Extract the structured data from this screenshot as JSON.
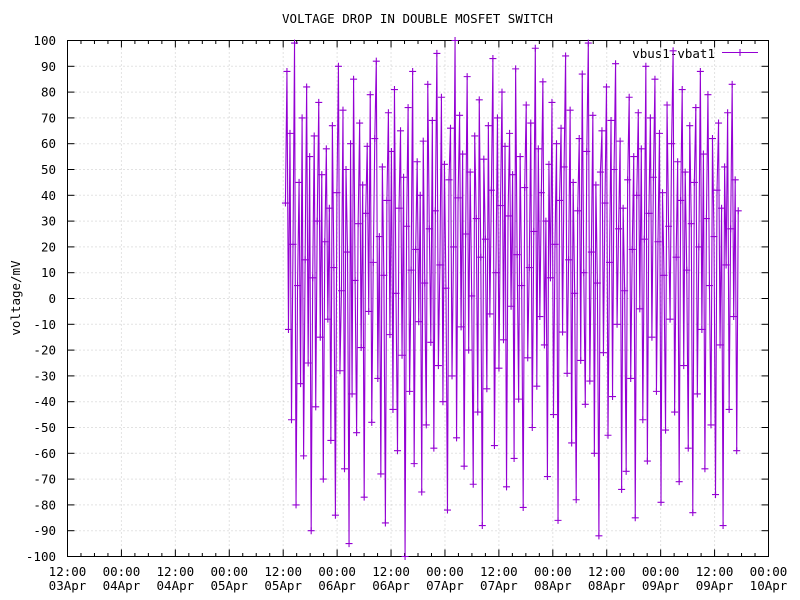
{
  "chart_data": {
    "type": "line",
    "title": "VOLTAGE DROP IN DOUBLE MOSFET SWITCH",
    "xlabel": "",
    "ylabel": "voltage/mV",
    "ylim": [
      -100,
      100
    ],
    "y_tick_step": 10,
    "x_total_hours": 156,
    "x_major_step_hours": 12,
    "x_minor_step_hours": 3,
    "grid": true,
    "legend": {
      "label": "vbus1-vbat1",
      "position": "top-right"
    },
    "xticks": [
      {
        "time": "12:00",
        "date": "03Apr"
      },
      {
        "time": "00:00",
        "date": "04Apr"
      },
      {
        "time": "12:00",
        "date": "04Apr"
      },
      {
        "time": "00:00",
        "date": "05Apr"
      },
      {
        "time": "12:00",
        "date": "05Apr"
      },
      {
        "time": "00:00",
        "date": "06Apr"
      },
      {
        "time": "12:00",
        "date": "06Apr"
      },
      {
        "time": "00:00",
        "date": "07Apr"
      },
      {
        "time": "12:00",
        "date": "07Apr"
      },
      {
        "time": "00:00",
        "date": "08Apr"
      },
      {
        "time": "12:00",
        "date": "08Apr"
      },
      {
        "time": "00:00",
        "date": "09Apr"
      },
      {
        "time": "12:00",
        "date": "09Apr"
      },
      {
        "time": "00:00",
        "date": "10Apr"
      }
    ],
    "colors": {
      "series": "#9400d3",
      "grid": "#c6c6c6",
      "axis": "#000000",
      "text": "#000000",
      "background": "#ffffff"
    },
    "series": [
      {
        "name": "vbus1-vbat1",
        "color": "#9400d3",
        "marker": "plus",
        "start_hours": 48.5,
        "step_hours": 0.337,
        "unit": "mV",
        "values": [
          37,
          88,
          -12,
          64,
          -47,
          21,
          99,
          -80,
          5,
          45,
          -33,
          70,
          -61,
          15,
          82,
          -25,
          55,
          -90,
          8,
          63,
          -42,
          30,
          76,
          -15,
          48,
          -70,
          22,
          58,
          -8,
          35,
          -55,
          67,
          12,
          -84,
          41,
          90,
          -28,
          3,
          73,
          -66,
          50,
          18,
          -95,
          60,
          -37,
          85,
          7,
          -52,
          29,
          68,
          -19,
          44,
          -77,
          33,
          59,
          -5,
          79,
          -48,
          14,
          62,
          92,
          -31,
          24,
          -68,
          51,
          9,
          -87,
          38,
          72,
          -14,
          57,
          -43,
          81,
          2,
          -59,
          35,
          65,
          -22,
          47,
          -100,
          28,
          74,
          -36,
          11,
          88,
          -64,
          19,
          53,
          -9,
          40,
          -75,
          61,
          6,
          -49,
          83,
          27,
          -17,
          69,
          -58,
          34,
          95,
          -26,
          13,
          78,
          -40,
          52,
          4,
          -82,
          46,
          66,
          -30,
          20,
          100,
          -54,
          39,
          71,
          -11,
          56,
          -65,
          25,
          86,
          -20,
          49,
          1,
          -72,
          63,
          31,
          -44,
          77,
          16,
          -88,
          54,
          23,
          -35,
          67,
          -6,
          42,
          93,
          -57,
          10,
          70,
          -27,
          36,
          80,
          -16,
          59,
          -73,
          32,
          64,
          -3,
          48,
          -62,
          89,
          17,
          -39,
          55,
          5,
          -81,
          43,
          75,
          -23,
          12,
          68,
          -50,
          26,
          97,
          -34,
          58,
          -7,
          41,
          84,
          -18,
          30,
          -69,
          52,
          8,
          76,
          -45,
          21,
          60,
          -86,
          38,
          66,
          -13,
          51,
          94,
          -29,
          15,
          73,
          -56,
          45,
          2,
          -78,
          34,
          62,
          -24,
          87,
          10,
          -41,
          57,
          99,
          -32,
          18,
          71,
          -60,
          44,
          6,
          -92,
          49,
          65,
          -21,
          37,
          82,
          -53,
          14,
          69,
          -38,
          50,
          91,
          -10,
          27,
          61,
          -74,
          35,
          3,
          -67,
          46,
          78,
          -31,
          19,
          55,
          -85,
          40,
          72,
          -4,
          58,
          -47,
          23,
          90,
          -63,
          33,
          70,
          -15,
          47,
          85,
          -36,
          22,
          64,
          -79,
          41,
          9,
          -51,
          75,
          28,
          -8,
          60,
          96,
          -44,
          16,
          53,
          -71,
          38,
          81,
          -26,
          49,
          11,
          -58,
          67,
          29,
          -83,
          45,
          74,
          -37,
          20,
          88,
          -12,
          56,
          -66,
          31,
          79,
          5,
          -49,
          62,
          24,
          -76,
          42,
          68,
          -18,
          35,
          -88,
          51,
          13,
          72,
          -43,
          27,
          83,
          -7,
          46,
          -59,
          34
        ]
      }
    ]
  }
}
